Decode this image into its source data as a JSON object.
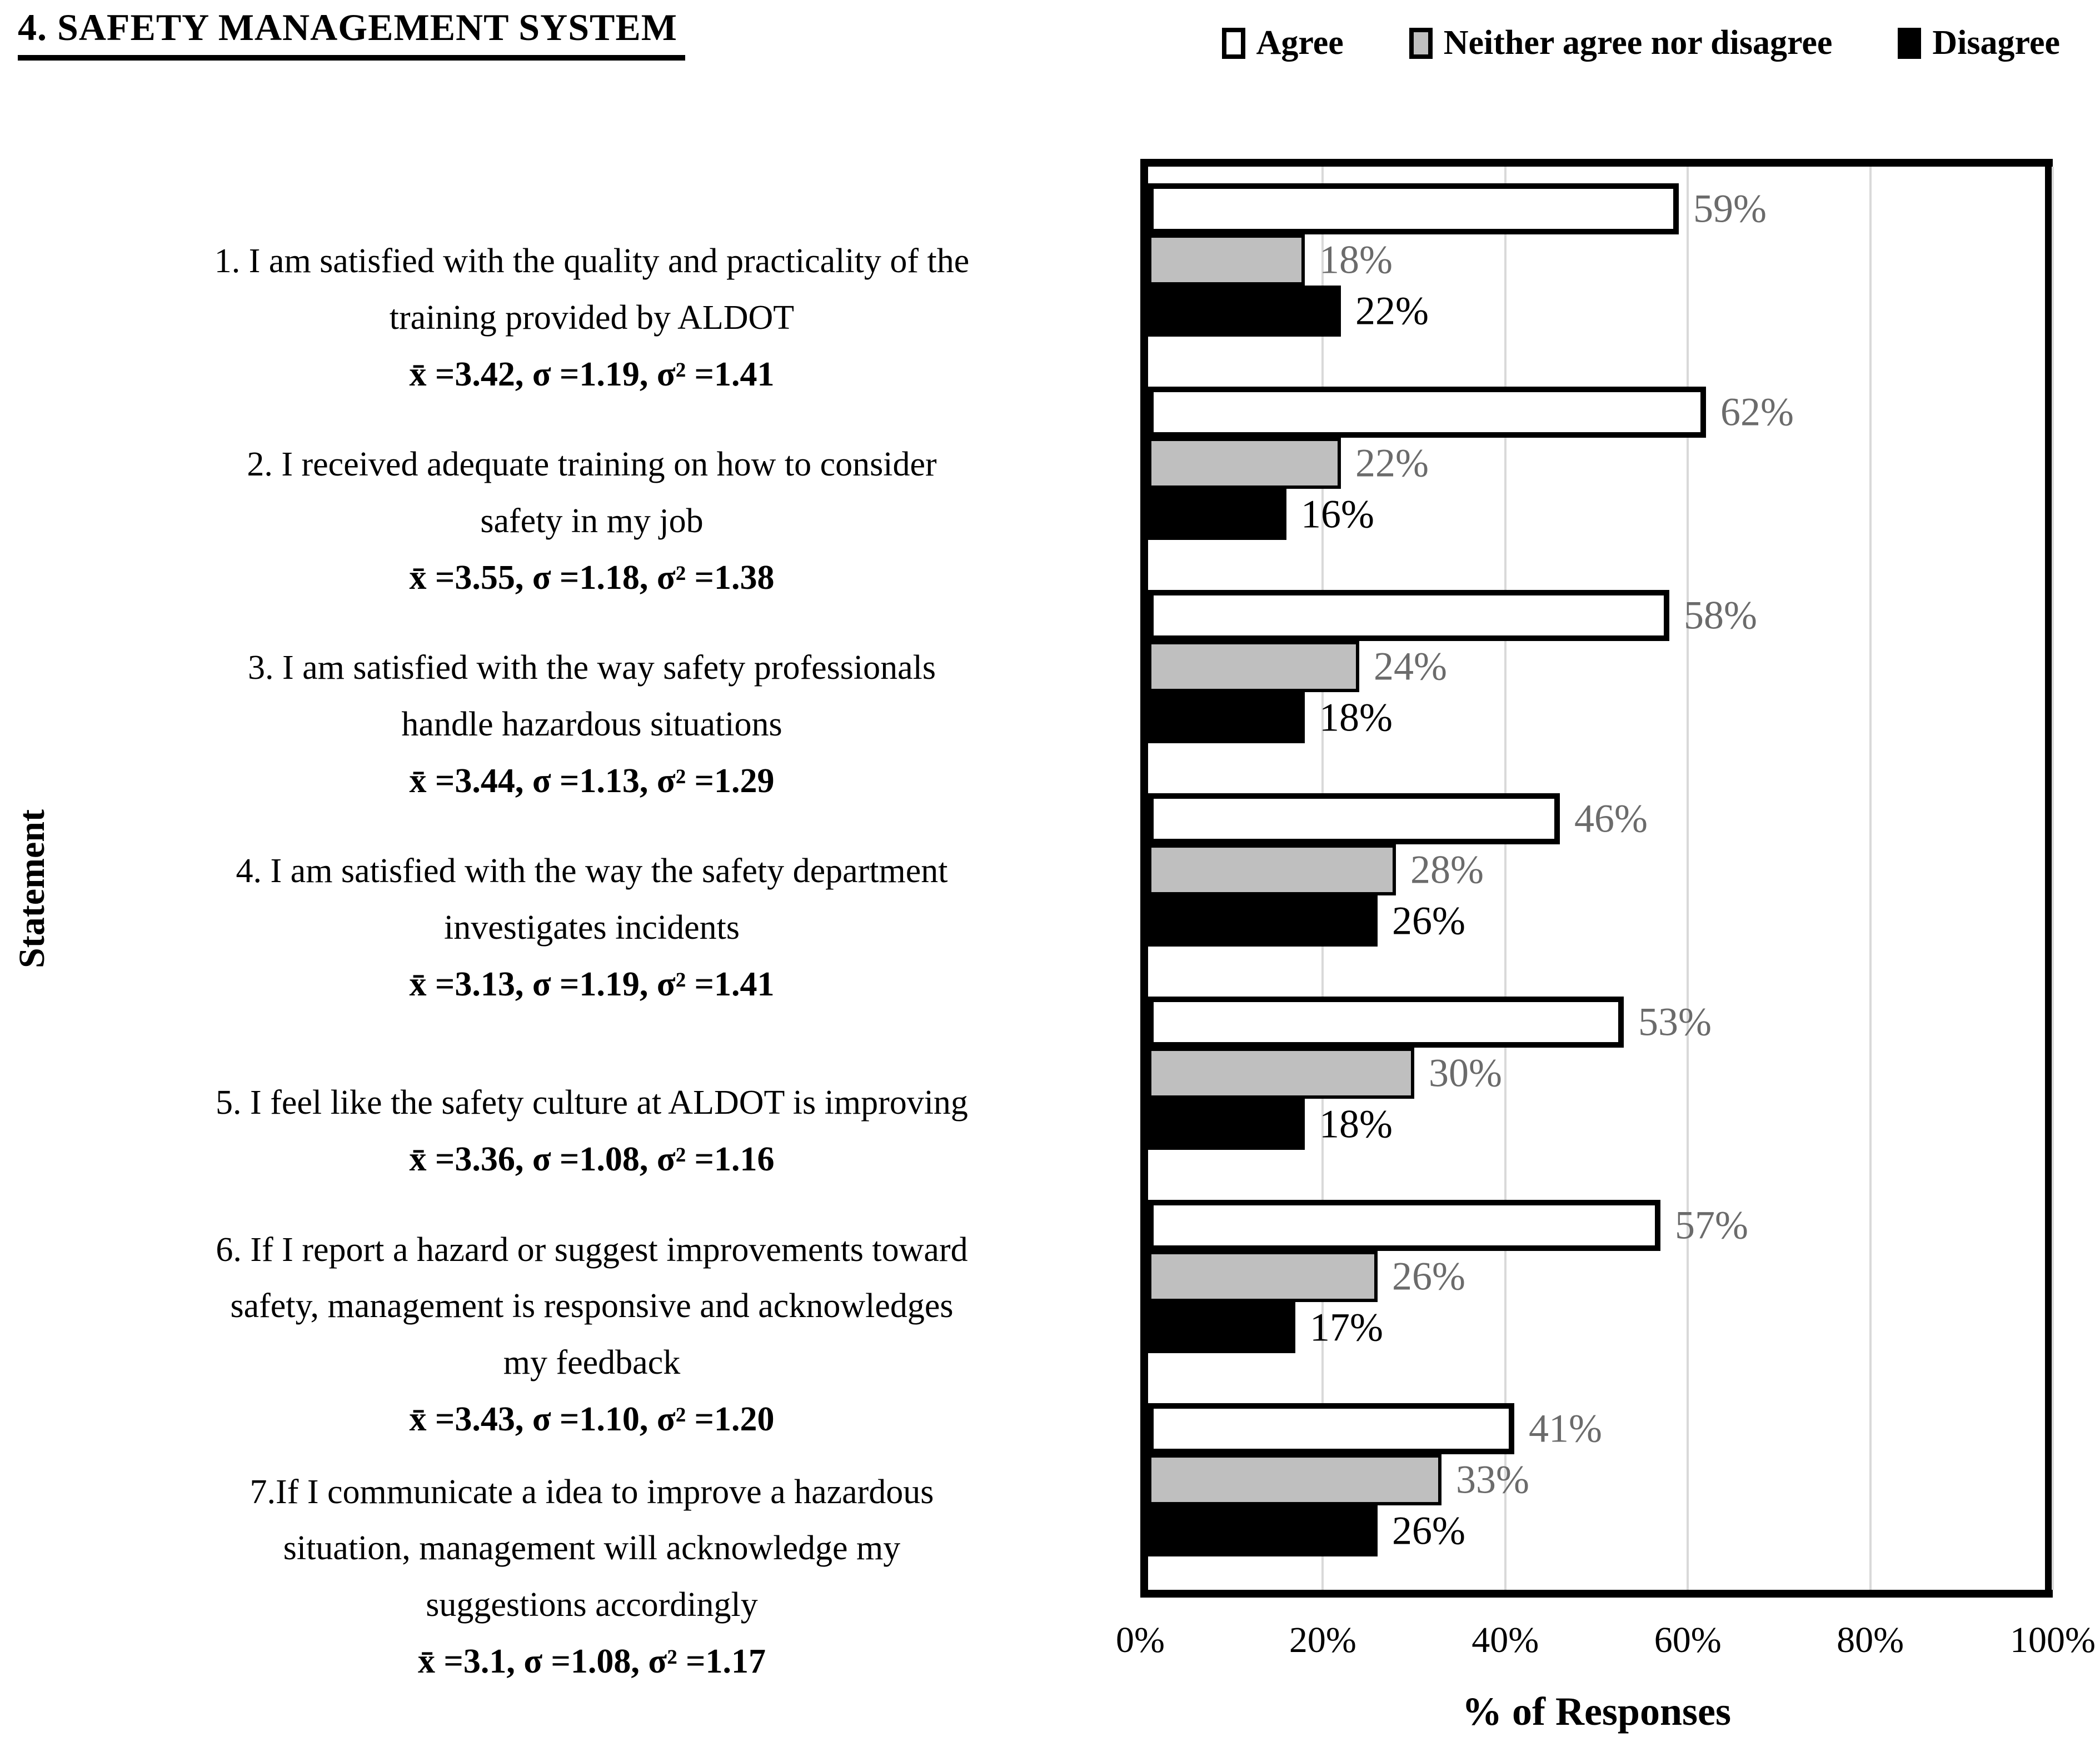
{
  "figure": {
    "title": "4. SAFETY MANAGEMENT SYSTEM"
  },
  "chart_data": {
    "type": "bar",
    "orientation": "horizontal",
    "title": "4. SAFETY MANAGEMENT SYSTEM",
    "xlabel": "% of Responses",
    "ylabel": "Statement",
    "xlim": [
      0,
      100
    ],
    "xticks": [
      "0%",
      "20%",
      "40%",
      "60%",
      "80%",
      "100%"
    ],
    "grid": true,
    "legend_position": "top-right",
    "legend": [
      "Agree",
      "Neither agree nor disagree",
      "Disagree"
    ],
    "value_suffix": "%",
    "categories": [
      {
        "lines": [
          "1. I am satisfied with the quality and practicality of the",
          "training provided by ALDOT"
        ],
        "stats": "x̄ =3.42, σ =1.19, σ² =1.41"
      },
      {
        "lines": [
          "2. I received adequate training on how to consider",
          "safety in my job"
        ],
        "stats": "x̄ =3.55, σ =1.18, σ² =1.38"
      },
      {
        "lines": [
          "3. I am satisfied with the way safety professionals",
          "handle hazardous situations"
        ],
        "stats": "x̄ =3.44, σ =1.13, σ² =1.29"
      },
      {
        "lines": [
          "4. I am satisfied with the way the safety department",
          "investigates incidents"
        ],
        "stats": "x̄ =3.13, σ =1.19, σ² =1.41"
      },
      {
        "lines": [
          "5. I feel like the safety culture at ALDOT is improving"
        ],
        "stats": "x̄ =3.36, σ =1.08, σ² =1.16"
      },
      {
        "lines": [
          "6. If I report a hazard or suggest improvements toward",
          "safety, management is responsive and acknowledges",
          "my feedback"
        ],
        "stats": "x̄ =3.43, σ =1.10, σ² =1.20"
      },
      {
        "lines": [
          "7.If I communicate a idea to improve a hazardous",
          "situation, management will acknowledge my",
          "suggestions accordingly"
        ],
        "stats": "x̄ =3.1, σ =1.08, σ² =1.17"
      }
    ],
    "series": [
      {
        "key": "agree",
        "name": "Agree",
        "values": [
          59,
          62,
          58,
          46,
          53,
          57,
          41
        ],
        "fill": "#FFFFFF",
        "border_color": "#000000",
        "border_px": 10,
        "label_color": "#6B6B6B"
      },
      {
        "key": "neither",
        "name": "Neither agree nor disagree",
        "values": [
          18,
          22,
          24,
          28,
          30,
          26,
          33
        ],
        "fill": "#BFBFBF",
        "border_color": "#000000",
        "border_px": 6,
        "label_color": "#6B6B6B"
      },
      {
        "key": "disagree",
        "name": "Disagree",
        "values": [
          22,
          16,
          18,
          26,
          18,
          17,
          26
        ],
        "fill": "#000000",
        "border_color": "#000000",
        "border_px": 0,
        "label_color": "#000000"
      }
    ]
  },
  "colors": {
    "background": "#FFFFFF",
    "frame": "#000000",
    "gridline": "#D9D9D9",
    "value_label_gray": "#6B6B6B"
  }
}
